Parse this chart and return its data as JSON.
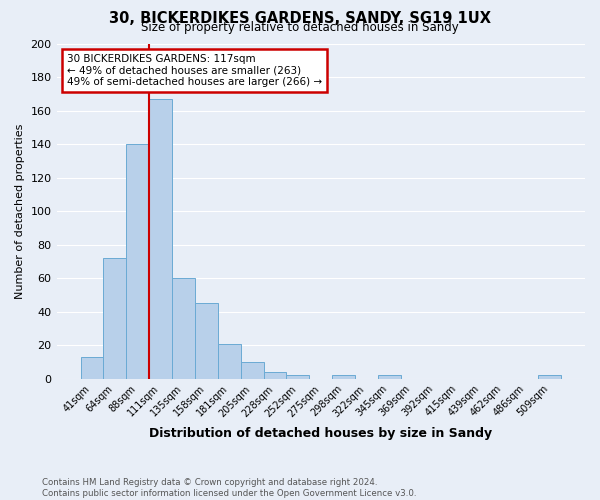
{
  "title": "30, BICKERDIKES GARDENS, SANDY, SG19 1UX",
  "subtitle": "Size of property relative to detached houses in Sandy",
  "xlabel": "Distribution of detached houses by size in Sandy",
  "ylabel": "Number of detached properties",
  "bar_labels": [
    "41sqm",
    "64sqm",
    "88sqm",
    "111sqm",
    "135sqm",
    "158sqm",
    "181sqm",
    "205sqm",
    "228sqm",
    "252sqm",
    "275sqm",
    "298sqm",
    "322sqm",
    "345sqm",
    "369sqm",
    "392sqm",
    "415sqm",
    "439sqm",
    "462sqm",
    "486sqm",
    "509sqm"
  ],
  "bar_values": [
    13,
    72,
    140,
    167,
    60,
    45,
    21,
    10,
    4,
    2,
    0,
    2,
    0,
    2,
    0,
    0,
    0,
    0,
    0,
    0,
    2
  ],
  "bar_color": "#b8d0ea",
  "bar_edge_color": "#6aaad4",
  "vline_color": "#cc0000",
  "vline_index": 3,
  "ylim": [
    0,
    200
  ],
  "yticks": [
    0,
    20,
    40,
    60,
    80,
    100,
    120,
    140,
    160,
    180,
    200
  ],
  "annotation_title": "30 BICKERDIKES GARDENS: 117sqm",
  "annotation_line1": "← 49% of detached houses are smaller (263)",
  "annotation_line2": "49% of semi-detached houses are larger (266) →",
  "annotation_box_color": "#cc0000",
  "footer_line1": "Contains HM Land Registry data © Crown copyright and database right 2024.",
  "footer_line2": "Contains public sector information licensed under the Open Government Licence v3.0.",
  "background_color": "#e8eef7",
  "grid_color": "#ffffff"
}
